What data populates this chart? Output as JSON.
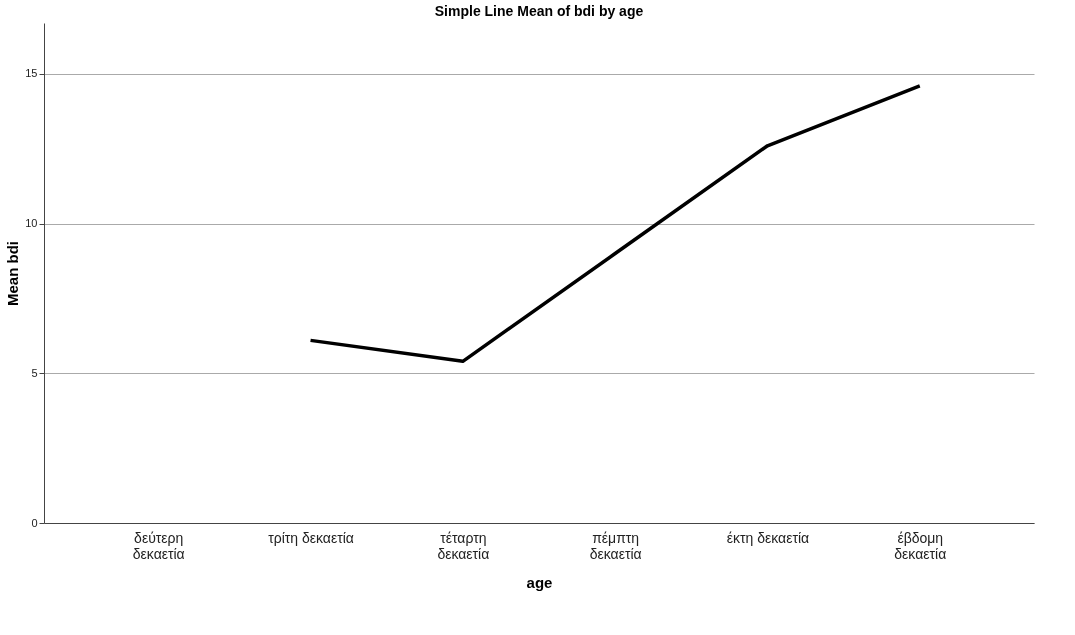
{
  "chart_data": {
    "type": "line",
    "title": "Simple Line Mean of bdi by age",
    "xlabel": "age",
    "ylabel": "Mean bdi",
    "categories": [
      "δεύτερη δεκαετία",
      "τρίτη δεκαετία",
      "τέταρτη δεκαετία",
      "πέμπτη δεκαετία",
      "έκτη δεκαετία",
      "έβδομη δεκαετία"
    ],
    "series": [
      {
        "color": "#000000",
        "values": [
          null,
          6.1,
          5.4,
          9.0,
          12.6,
          14.6
        ]
      }
    ],
    "ylim": [
      0,
      16.7
    ],
    "yticks": [
      0,
      5,
      10,
      15
    ],
    "grid": "y",
    "marker": "none",
    "line_style": "solid"
  }
}
